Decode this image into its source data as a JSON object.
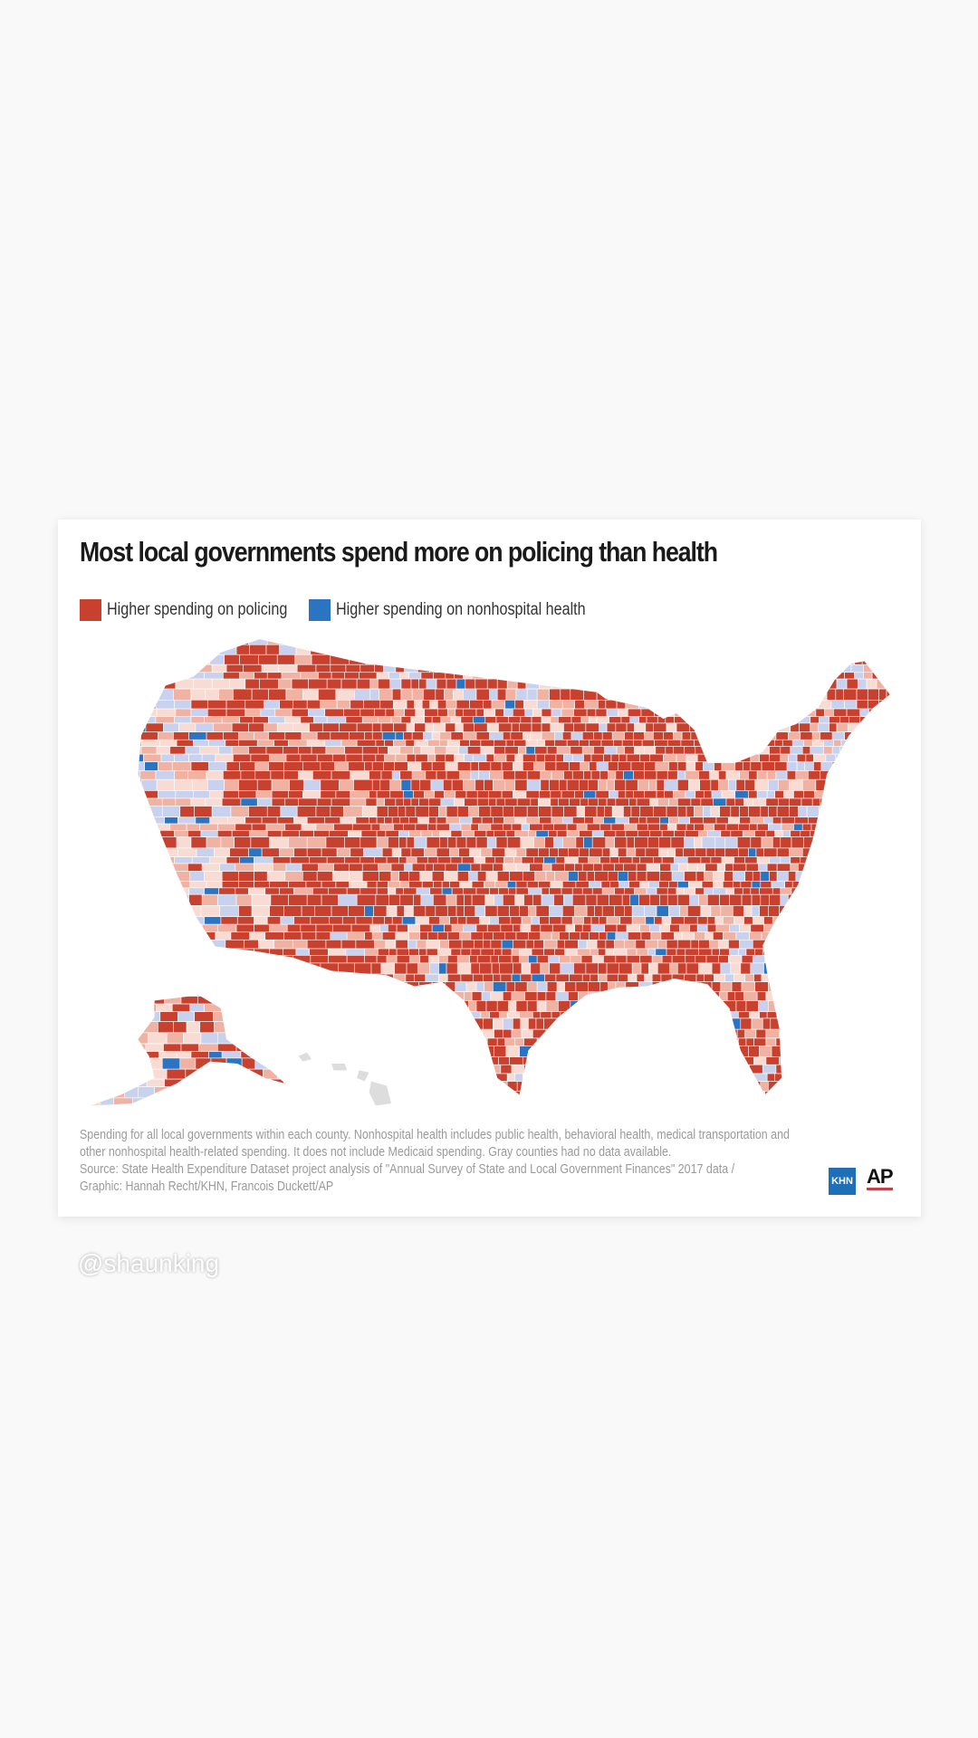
{
  "title": "Most local governments spend more on policing than health",
  "legend": [
    {
      "label": "Higher spending on policing",
      "color": "#c8412f"
    },
    {
      "label": "Higher spending on nonhospital health",
      "color": "#2a74c2"
    }
  ],
  "palette": {
    "policing_strong": "#c8412f",
    "policing_light": "#f0b3a3",
    "policing_pale": "#f8dbd2",
    "health_light": "#c8d2ee",
    "health_strong": "#2a74c2",
    "no_data": "#dddddd"
  },
  "footer": {
    "line1": "Spending for all local governments within each county. Nonhospital health includes public health, behavioral health, medical transportation and",
    "line2": "other nonhospital health-related spending. It does not include Medicaid spending. Gray counties had no data available.",
    "line3": "Source: State Health Expenditure Dataset project analysis of \"Annual Survey of State and Local Government Finances\" 2017 data /",
    "line4": "Graphic: Hannah Recht/KHN, Francois Duckett/AP"
  },
  "logos": {
    "khn": "KHN",
    "ap": "AP"
  },
  "watermark": "@shaunking"
}
